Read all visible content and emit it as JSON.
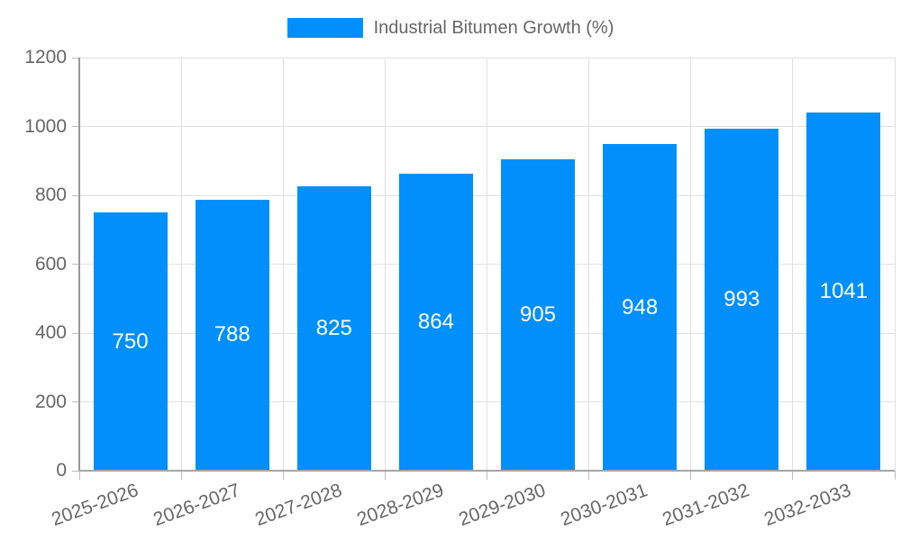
{
  "chart_data": {
    "type": "bar",
    "legend": "Industrial Bitumen Growth (%)",
    "legend_position": "top",
    "categories": [
      "2025-2026",
      "2026-2027",
      "2027-2028",
      "2028-2029",
      "2029-2030",
      "2030-2031",
      "2031-2032",
      "2032-2033"
    ],
    "values": [
      750,
      788,
      825,
      864,
      905,
      948,
      993,
      1041
    ],
    "xlabel": "",
    "ylabel": "",
    "ylim": [
      0,
      1200
    ],
    "yticks": [
      0,
      200,
      400,
      600,
      800,
      1000,
      1200
    ],
    "grid": true,
    "colors": {
      "bar": "#008FFB",
      "value_label": "#FFFFFF",
      "tick_label": "#666666",
      "gridline": "#E0E0E0",
      "y_axis_line": "#999999",
      "x_axis_line": "#A6A6A6",
      "tick_mark": "#BDBDBD"
    }
  }
}
